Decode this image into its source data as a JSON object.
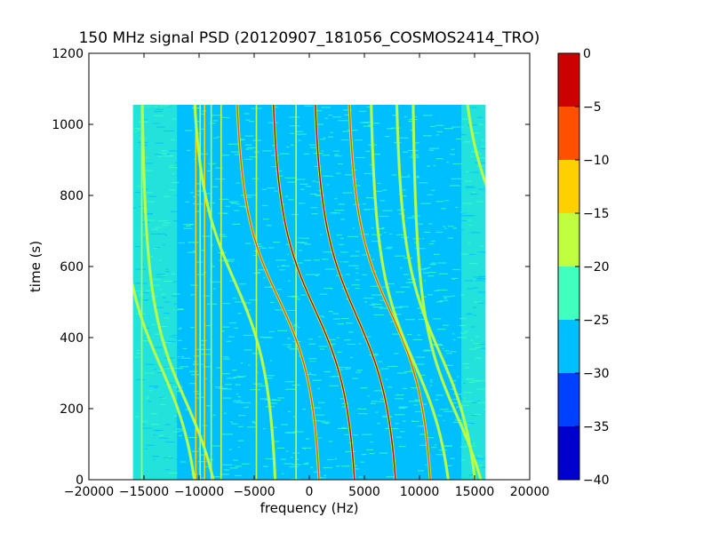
{
  "chart_data": {
    "type": "heatmap",
    "title": "150 MHz signal PSD (20120907_181056_COSMOS2414_TRO)",
    "xlabel": "frequency (Hz)",
    "ylabel": "time (s)",
    "xlim": [
      -20000,
      20000
    ],
    "ylim": [
      0,
      1200
    ],
    "xticks": [
      -20000,
      -15000,
      -10000,
      -5000,
      0,
      5000,
      10000,
      15000,
      20000
    ],
    "xtick_labels": [
      "−20000",
      "−15000",
      "−10000",
      "−5000",
      "0",
      "5000",
      "10000",
      "15000",
      "20000"
    ],
    "yticks": [
      0,
      200,
      400,
      600,
      800,
      1000,
      1200
    ],
    "ytick_labels": [
      "0",
      "200",
      "400",
      "600",
      "800",
      "1000",
      "1200"
    ],
    "data_extent": {
      "x": [
        -16000,
        16000
      ],
      "y": [
        0,
        1055
      ]
    },
    "colorbar": {
      "range": [
        -40,
        0
      ],
      "levels": [
        -40,
        -35,
        -30,
        -25,
        -20,
        -15,
        -10,
        -5,
        0
      ],
      "tick_labels": [
        "−40",
        "−35",
        "−30",
        "−25",
        "−20",
        "−15",
        "−10",
        "−5",
        "0"
      ],
      "colors": [
        "#0000cc",
        "#0040ff",
        "#00bfff",
        "#40ffbf",
        "#bfff40",
        "#ffd000",
        "#ff5000",
        "#cc0000"
      ]
    },
    "background_level_colors": {
      "noise_floor": "#00bfff",
      "edges": "#40ffbf"
    },
    "vertical_lines": [
      {
        "x": -15200,
        "color": "#bfff40"
      },
      {
        "x": -10300,
        "color": "#ffd000"
      },
      {
        "x": -9900,
        "color": "#bfff40"
      },
      {
        "x": -9500,
        "color": "#ffd000"
      },
      {
        "x": -8900,
        "color": "#bfff40"
      },
      {
        "x": -8000,
        "color": "#bfff40"
      },
      {
        "x": -4800,
        "color": "#bfff40"
      },
      {
        "x": -1200,
        "color": "#bfff40"
      }
    ],
    "doppler_traces": [
      {
        "f0": 500,
        "t0": 480,
        "amp": 4200,
        "c": 290,
        "color": "#cc0000"
      },
      {
        "f0": -2800,
        "t0": 510,
        "amp": 4200,
        "c": 280,
        "color": "#ff5000"
      },
      {
        "f0": 4300,
        "t0": 460,
        "amp": 4200,
        "c": 300,
        "color": "#cc0000"
      },
      {
        "f0": 7400,
        "t0": 470,
        "amp": 4200,
        "c": 290,
        "color": "#ff5000"
      },
      {
        "f0": -13500,
        "t0": 320,
        "amp": 4200,
        "c": 300,
        "color": "#bfff40"
      },
      {
        "f0": -11200,
        "t0": 220,
        "amp": 4200,
        "c": 300,
        "color": "#bfff40"
      },
      {
        "f0": -6800,
        "t0": 560,
        "amp": 4200,
        "c": 300,
        "color": "#bfff40"
      },
      {
        "f0": 9500,
        "t0": 330,
        "amp": 4200,
        "c": 300,
        "color": "#bfff40"
      },
      {
        "f0": 11800,
        "t0": 360,
        "amp": 4200,
        "c": 300,
        "color": "#bfff40"
      },
      {
        "f0": 13400,
        "t0": 180,
        "amp": 4200,
        "c": 300,
        "color": "#bfff40"
      },
      {
        "f0": 17500,
        "t0": 720,
        "amp": 4200,
        "c": 300,
        "color": "#bfff40"
      }
    ]
  }
}
